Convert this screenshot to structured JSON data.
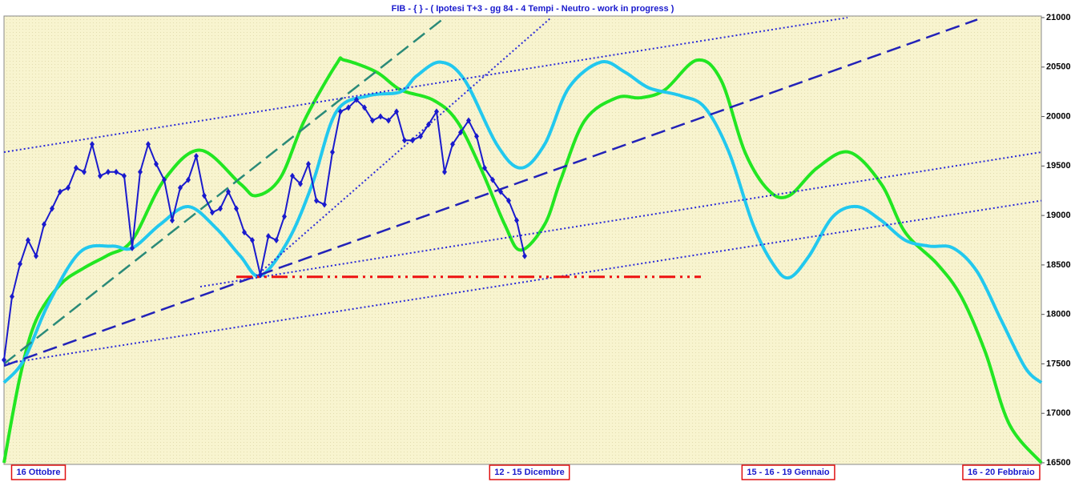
{
  "chart_data": {
    "type": "line",
    "title": "FIB  -  { } - ( Ipotesi T+3 - gg 84 - 4 Tempi - Neutro - work in progress )",
    "xlim": [
      0,
      129.5
    ],
    "xticks": [
      {
        "value": 4.3,
        "label": "16 Ottobre"
      },
      {
        "value": 65.6,
        "label": "12 - 15 Dicembre"
      },
      {
        "value": 97.9,
        "label": "15 - 16 - 19 Gennaio"
      },
      {
        "value": 124.5,
        "label": "16 - 20 Febbraio"
      }
    ],
    "ylim": [
      16500,
      21000
    ],
    "yticks": [
      16500,
      17000,
      17500,
      18000,
      18500,
      19000,
      19500,
      20000,
      20500,
      21000
    ],
    "series": [
      {
        "color": "#22e622",
        "width": 4,
        "smooth": true,
        "x": [
          0,
          2,
          4,
          7,
          10,
          13,
          16,
          20,
          24.5,
          29.5,
          31.5,
          34.5,
          37.5,
          41.5,
          42.5,
          46.5,
          49.5,
          53.5,
          56.5,
          59.5,
          62.5,
          64.5,
          67.5,
          69.5,
          72.5,
          76.5,
          79.5,
          82.5,
          86.5,
          89.5,
          92.5,
          95.5,
          98,
          101.5,
          105.5,
          109.5,
          112.5,
          116.5,
          119.5,
          122.5,
          125.5,
          129.5
        ],
        "values": [
          16500,
          17370,
          17940,
          18300,
          18470,
          18600,
          18750,
          19360,
          19660,
          19320,
          19200,
          19380,
          19960,
          20530,
          20570,
          20450,
          20270,
          20170,
          19960,
          19480,
          18910,
          18650,
          18910,
          19360,
          19960,
          20190,
          20190,
          20270,
          20570,
          20370,
          19640,
          19250,
          19200,
          19480,
          19640,
          19320,
          18830,
          18510,
          18180,
          17620,
          16890,
          16500
        ]
      },
      {
        "color": "#22c8ee",
        "width": 4,
        "smooth": true,
        "x": [
          0,
          2.5,
          5.5,
          9.5,
          13.5,
          16,
          19.5,
          23,
          26.5,
          29.5,
          32,
          35.5,
          38.5,
          41.5,
          45.5,
          49.5,
          51.5,
          54.5,
          57.5,
          61.5,
          64.5,
          67.5,
          70.5,
          74.5,
          77.5,
          80.5,
          84.5,
          87.5,
          90.5,
          93.5,
          96,
          98,
          100.5,
          103.5,
          106.5,
          109.5,
          112.5,
          115.5,
          118.5,
          121.5,
          124.5,
          127.5,
          129.5
        ],
        "values": [
          17310,
          17540,
          18100,
          18630,
          18690,
          18670,
          18910,
          19090,
          18870,
          18590,
          18390,
          18750,
          19320,
          20050,
          20210,
          20250,
          20410,
          20550,
          20370,
          19720,
          19480,
          19720,
          20290,
          20550,
          20450,
          20290,
          20210,
          20090,
          19640,
          18910,
          18510,
          18370,
          18590,
          18990,
          19090,
          18950,
          18750,
          18690,
          18670,
          18430,
          17940,
          17460,
          17310
        ]
      },
      {
        "color": "#2a8a78",
        "width": 2.5,
        "dash": "dashed",
        "x": [
          0,
          54.7
        ],
        "values": [
          17500,
          20980
        ]
      },
      {
        "color": "#2222b8",
        "width": 2.5,
        "dash": "dashed",
        "x": [
          0,
          121.5
        ],
        "values": [
          17480,
          20980
        ]
      },
      {
        "color": "#2a2ad8",
        "width": 2,
        "dash": "dotted",
        "x": [
          0,
          105.3
        ],
        "values": [
          19640,
          21000
        ]
      },
      {
        "color": "#2a2ad8",
        "width": 2,
        "dash": "dotted",
        "x": [
          31.5,
          68.3
        ],
        "values": [
          18390,
          21000
        ]
      },
      {
        "color": "#2a2ad8",
        "width": 2,
        "dash": "dotted",
        "x": [
          24.5,
          129.5
        ],
        "values": [
          18280,
          19640
        ]
      },
      {
        "color": "#2a2ad8",
        "width": 2,
        "dash": "dotted",
        "x": [
          0,
          129.5
        ],
        "values": [
          17500,
          19150
        ]
      },
      {
        "color": "#ee1111",
        "width": 3,
        "dash": "dashdot",
        "x": [
          29,
          87
        ],
        "values": [
          18380,
          18380
        ]
      },
      {
        "color": "#1a1acd",
        "width": 2,
        "marker": "diamond",
        "x": [
          0,
          1,
          2,
          3,
          4,
          5,
          6,
          7,
          8,
          9,
          10,
          11,
          12,
          13,
          14,
          15,
          16,
          17,
          18,
          19,
          20,
          21,
          22,
          23,
          24,
          25,
          26,
          27,
          28,
          29,
          30,
          31,
          32,
          33,
          34,
          35,
          36,
          37,
          38,
          39,
          40,
          41,
          42,
          43,
          44,
          45,
          46,
          47,
          48,
          49,
          50,
          51,
          52,
          53,
          54,
          55,
          56,
          57,
          58,
          59,
          60,
          61,
          62,
          63,
          64,
          65
        ],
        "values": [
          17540,
          18180,
          18510,
          18750,
          18590,
          18910,
          19070,
          19240,
          19280,
          19480,
          19440,
          19720,
          19400,
          19440,
          19440,
          19400,
          18670,
          19440,
          19720,
          19520,
          19360,
          18950,
          19280,
          19360,
          19600,
          19200,
          19030,
          19070,
          19240,
          19070,
          18830,
          18750,
          18400,
          18790,
          18750,
          18990,
          19400,
          19320,
          19520,
          19150,
          19110,
          19640,
          20050,
          20090,
          20170,
          20090,
          19960,
          20000,
          19960,
          20050,
          19760,
          19760,
          19800,
          19920,
          20050,
          19440,
          19720,
          19840,
          19960,
          19800,
          19480,
          19360,
          19240,
          19150,
          18950,
          18590
        ]
      }
    ]
  }
}
